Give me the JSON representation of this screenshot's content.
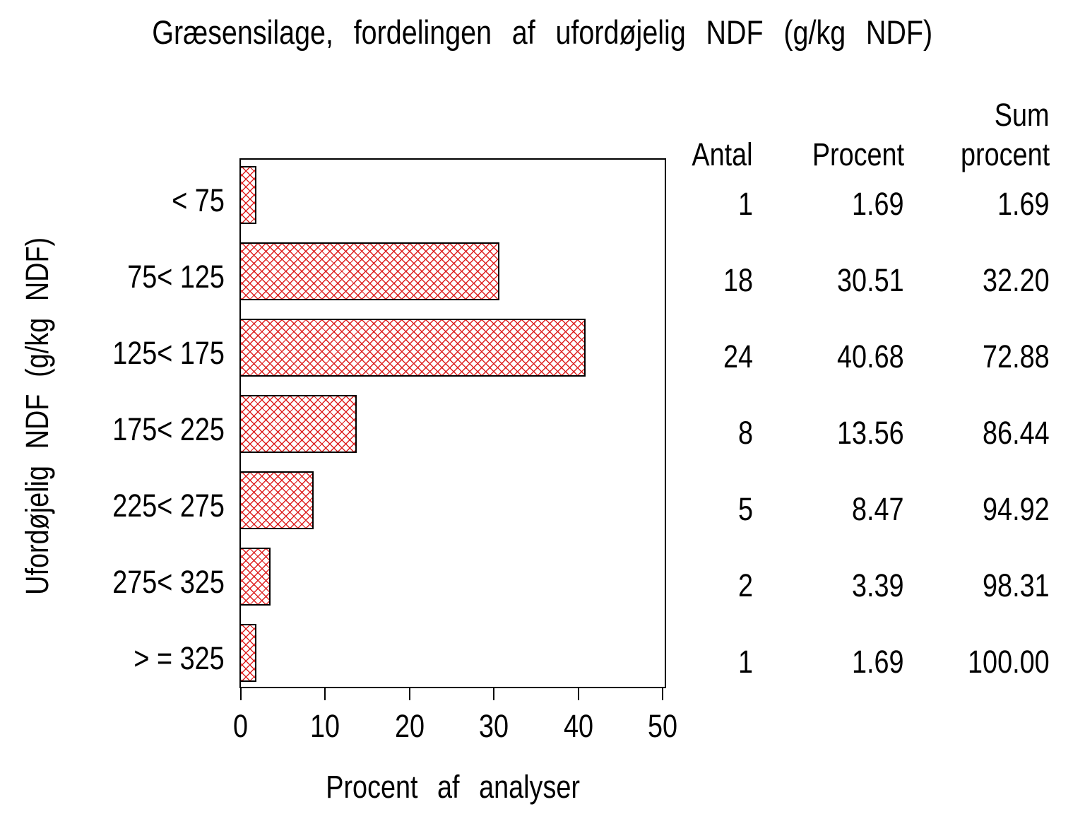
{
  "title": "Græsensilage, fordelingen af ufordøjelig NDF (g/kg NDF)",
  "chart_data": {
    "type": "bar",
    "orientation": "horizontal",
    "title": "Græsensilage, fordelingen af ufordøjelig NDF (g/kg NDF)",
    "categories": [
      "< 75",
      "75< 125",
      "125< 175",
      "175< 225",
      "225< 275",
      "275< 325",
      "> = 325"
    ],
    "values": [
      1.69,
      30.51,
      40.68,
      13.56,
      8.47,
      3.39,
      1.69
    ],
    "xlabel": "Procent af analyser",
    "ylabel": "Ufordøjelig NDF (g/kg NDF)",
    "xlim": [
      0,
      50
    ],
    "xticks": [
      "0",
      "10",
      "20",
      "30",
      "40",
      "50"
    ],
    "grid": "off",
    "legend": "none",
    "bar_style": "red-crosshatch",
    "bar_line_color": "#dd2020",
    "bar_border_color": "#000000",
    "frame_color": "#000000"
  },
  "table": {
    "header_sum_line1": "Sum",
    "headers": [
      "Antal",
      "Procent",
      "procent"
    ],
    "rows": [
      {
        "antal": "1",
        "procent": "1.69",
        "sum_procent": "1.69"
      },
      {
        "antal": "18",
        "procent": "30.51",
        "sum_procent": "32.20"
      },
      {
        "antal": "24",
        "procent": "40.68",
        "sum_procent": "72.88"
      },
      {
        "antal": "8",
        "procent": "13.56",
        "sum_procent": "86.44"
      },
      {
        "antal": "5",
        "procent": "8.47",
        "sum_procent": "94.92"
      },
      {
        "antal": "2",
        "procent": "3.39",
        "sum_procent": "98.31"
      },
      {
        "antal": "1",
        "procent": "1.69",
        "sum_procent": "100.00"
      }
    ]
  }
}
